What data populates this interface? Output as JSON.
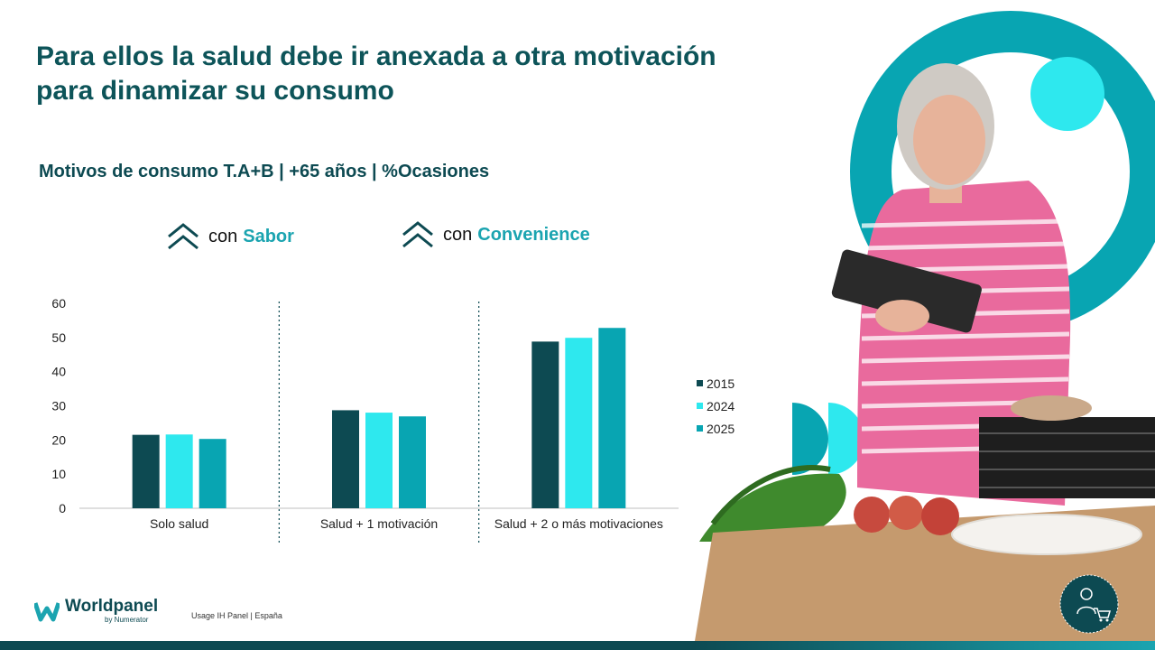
{
  "title_lines": [
    "Para ellos la salud debe ir anexada a otra motivación",
    "para dinamizar su consumo"
  ],
  "subtitle": "Motivos de consumo T.A+B | +65 años | %Ocasiones",
  "callouts": [
    {
      "prefix": "con",
      "highlight": "Sabor"
    },
    {
      "prefix": "con",
      "highlight": "Convenience"
    }
  ],
  "colors": {
    "s2015": "#0d4a52",
    "s2024": "#2ee8ee",
    "s2025": "#08a5b2",
    "title": "#0d5459",
    "accent": "#1ba4b0"
  },
  "chart_data": {
    "type": "bar",
    "categories": [
      "Solo salud",
      "Salud + 1 motivación",
      "Salud + 2 o más motivaciones"
    ],
    "series": [
      {
        "name": "2015",
        "values": [
          21.5,
          28.7,
          48.8
        ]
      },
      {
        "name": "2024",
        "values": [
          21.6,
          28.0,
          49.9
        ]
      },
      {
        "name": "2025",
        "values": [
          20.3,
          26.9,
          52.8
        ]
      }
    ],
    "yticks": [
      0,
      10,
      20,
      30,
      40,
      50,
      60
    ],
    "ylim": [
      0,
      60
    ],
    "grid": false,
    "legend_position": "right"
  },
  "footer": {
    "brand": "Worldpanel",
    "by": "by Numerator",
    "source": "Usage IH Panel | España"
  }
}
